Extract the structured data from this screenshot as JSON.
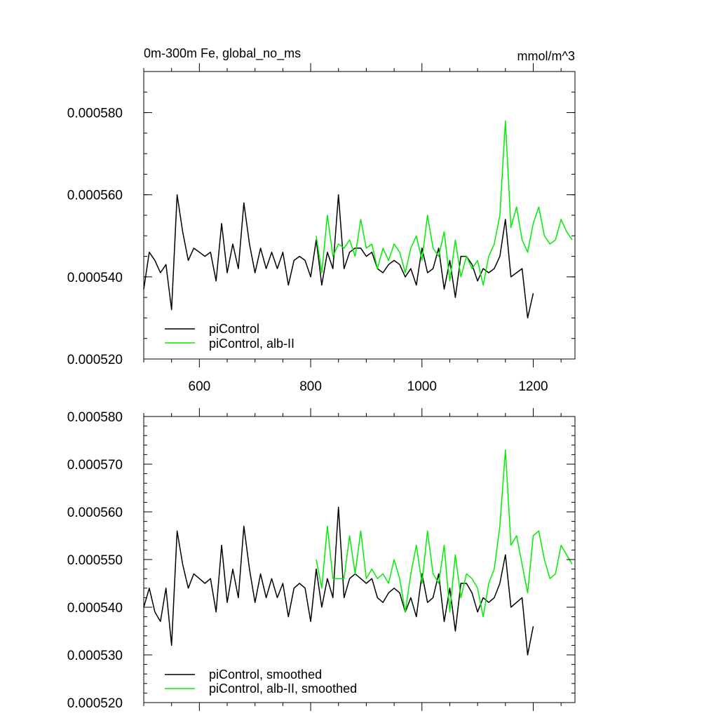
{
  "chart_data": [
    {
      "type": "line",
      "title": "0m-300m Fe, global_no_ms",
      "units": "mmol/m^3",
      "xlim": [
        500,
        1275
      ],
      "ylim": [
        0.00052,
        0.00059
      ],
      "yticks": [
        "0.000520",
        "0.000540",
        "0.000560",
        "0.000580"
      ],
      "xticks": [
        "600",
        "800",
        "1000",
        "1200"
      ],
      "legend_position": "bottom-left",
      "grid": false,
      "series": [
        {
          "name": "piControl",
          "color": "#000000",
          "x": [
            500,
            510,
            520,
            530,
            540,
            550,
            560,
            570,
            580,
            590,
            600,
            610,
            620,
            630,
            640,
            650,
            660,
            670,
            680,
            690,
            700,
            710,
            720,
            730,
            740,
            750,
            760,
            770,
            780,
            790,
            800,
            810,
            820,
            830,
            840,
            850,
            860,
            870,
            880,
            890,
            900,
            910,
            920,
            930,
            940,
            950,
            960,
            970,
            980,
            990,
            1000,
            1010,
            1020,
            1030,
            1040,
            1050,
            1060,
            1070,
            1080,
            1090,
            1100,
            1110,
            1120,
            1130,
            1140,
            1150,
            1160,
            1170,
            1180,
            1190,
            1200
          ],
          "values": [
            0.000537,
            0.000546,
            0.000544,
            0.000541,
            0.000543,
            0.000532,
            0.00056,
            0.000551,
            0.000544,
            0.000547,
            0.000546,
            0.000545,
            0.000546,
            0.000539,
            0.000553,
            0.000541,
            0.000548,
            0.000542,
            0.000558,
            0.000548,
            0.000541,
            0.000547,
            0.000542,
            0.000546,
            0.000542,
            0.000546,
            0.000538,
            0.000544,
            0.000545,
            0.000544,
            0.00054,
            0.000549,
            0.000538,
            0.000546,
            0.000542,
            0.00056,
            0.000542,
            0.000546,
            0.000547,
            0.000547,
            0.000545,
            0.000546,
            0.000542,
            0.000541,
            0.000543,
            0.000544,
            0.000543,
            0.00054,
            0.000542,
            0.000538,
            0.000547,
            0.000541,
            0.000542,
            0.000547,
            0.000537,
            0.000544,
            0.000535,
            0.000545,
            0.000545,
            0.000543,
            0.000539,
            0.000542,
            0.000541,
            0.000542,
            0.000545,
            0.000554,
            0.00054,
            0.000541,
            0.000542,
            0.00053,
            0.000536
          ]
        },
        {
          "name": "piControl, alb-II",
          "color": "#00ee00",
          "x": [
            810,
            820,
            830,
            840,
            850,
            860,
            870,
            880,
            890,
            900,
            910,
            920,
            930,
            940,
            950,
            960,
            970,
            980,
            990,
            1000,
            1010,
            1020,
            1030,
            1040,
            1050,
            1060,
            1070,
            1080,
            1090,
            1100,
            1110,
            1120,
            1130,
            1140,
            1150,
            1160,
            1170,
            1180,
            1190,
            1200,
            1210,
            1220,
            1230,
            1240,
            1250,
            1260,
            1270
          ],
          "values": [
            0.00055,
            0.000541,
            0.000555,
            0.000545,
            0.000548,
            0.000547,
            0.000549,
            0.000545,
            0.000554,
            0.000547,
            0.000548,
            0.000542,
            0.000547,
            0.000544,
            0.000548,
            0.000546,
            0.000541,
            0.000547,
            0.00055,
            0.000544,
            0.000555,
            0.000547,
            0.000545,
            0.000551,
            0.000539,
            0.000549,
            0.00054,
            0.000545,
            0.000542,
            0.000544,
            0.000538,
            0.000545,
            0.000548,
            0.000555,
            0.000578,
            0.000552,
            0.000557,
            0.000549,
            0.000546,
            0.000553,
            0.000557,
            0.00055,
            0.000548,
            0.000549,
            0.000554,
            0.000551,
            0.000549
          ]
        }
      ]
    },
    {
      "type": "line",
      "title": "",
      "xlim": [
        500,
        1275
      ],
      "ylim": [
        0.00052,
        0.00058
      ],
      "yticks": [
        "0.000520",
        "0.000530",
        "0.000540",
        "0.000550",
        "0.000560",
        "0.000570",
        "0.000580"
      ],
      "xticks": [],
      "legend_position": "bottom-left",
      "grid": false,
      "series": [
        {
          "name": "piControl, smoothed",
          "color": "#000000",
          "x": [
            500,
            510,
            520,
            530,
            540,
            550,
            560,
            570,
            580,
            590,
            600,
            610,
            620,
            630,
            640,
            650,
            660,
            670,
            680,
            690,
            700,
            710,
            720,
            730,
            740,
            750,
            760,
            770,
            780,
            790,
            800,
            810,
            820,
            830,
            840,
            850,
            860,
            870,
            880,
            890,
            900,
            910,
            920,
            930,
            940,
            950,
            960,
            970,
            980,
            990,
            1000,
            1010,
            1020,
            1030,
            1040,
            1050,
            1060,
            1070,
            1080,
            1090,
            1100,
            1110,
            1120,
            1130,
            1140,
            1150,
            1160,
            1170,
            1180,
            1190,
            1200
          ],
          "values": [
            0.00054,
            0.000544,
            0.000539,
            0.000537,
            0.000544,
            0.000532,
            0.000556,
            0.000549,
            0.000544,
            0.000547,
            0.000546,
            0.000545,
            0.000546,
            0.000539,
            0.000553,
            0.000541,
            0.000548,
            0.000542,
            0.000557,
            0.000548,
            0.000541,
            0.000547,
            0.000542,
            0.000546,
            0.000542,
            0.000545,
            0.000538,
            0.000544,
            0.000545,
            0.000544,
            0.000537,
            0.000548,
            0.00054,
            0.000546,
            0.000542,
            0.000561,
            0.000542,
            0.000546,
            0.000547,
            0.000546,
            0.000545,
            0.000546,
            0.000542,
            0.000541,
            0.000543,
            0.000544,
            0.000543,
            0.000539,
            0.000542,
            0.000538,
            0.000547,
            0.000541,
            0.000542,
            0.000547,
            0.000537,
            0.000544,
            0.000535,
            0.000545,
            0.000545,
            0.000543,
            0.000539,
            0.000542,
            0.000541,
            0.000542,
            0.000545,
            0.000551,
            0.00054,
            0.000541,
            0.000542,
            0.00053,
            0.000536
          ]
        },
        {
          "name": "piControl, alb-II, smoothed",
          "color": "#00ee00",
          "x": [
            810,
            820,
            830,
            840,
            850,
            860,
            870,
            880,
            890,
            900,
            910,
            920,
            930,
            940,
            950,
            960,
            970,
            980,
            990,
            1000,
            1010,
            1020,
            1030,
            1040,
            1050,
            1060,
            1070,
            1080,
            1090,
            1100,
            1110,
            1120,
            1130,
            1140,
            1150,
            1160,
            1170,
            1180,
            1190,
            1200,
            1210,
            1220,
            1230,
            1240,
            1250,
            1260,
            1270
          ],
          "values": [
            0.00055,
            0.000544,
            0.000557,
            0.000546,
            0.000546,
            0.000546,
            0.000555,
            0.000547,
            0.000556,
            0.000546,
            0.000548,
            0.000546,
            0.000547,
            0.000545,
            0.00055,
            0.000546,
            0.000539,
            0.000547,
            0.000553,
            0.000545,
            0.000556,
            0.000547,
            0.000545,
            0.000553,
            0.000539,
            0.000551,
            0.000542,
            0.000547,
            0.000546,
            0.000544,
            0.000538,
            0.000545,
            0.000548,
            0.000557,
            0.000573,
            0.000553,
            0.000555,
            0.000549,
            0.000543,
            0.000555,
            0.000556,
            0.00055,
            0.000546,
            0.000547,
            0.000553,
            0.000551,
            0.000549
          ]
        }
      ]
    }
  ]
}
